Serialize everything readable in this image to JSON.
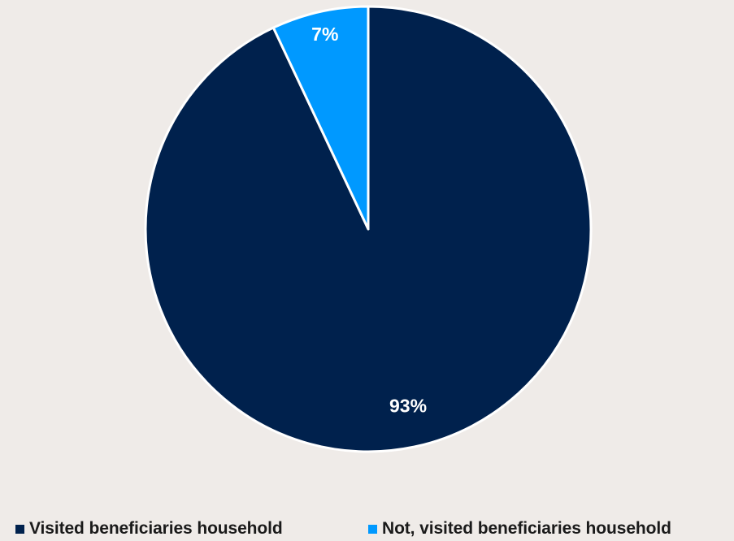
{
  "chart_data": {
    "type": "pie",
    "title": "",
    "categories": [
      "Visited beneficiaries household",
      "Not, visited beneficiaries household"
    ],
    "values": [
      93,
      7
    ],
    "data_labels": [
      "93%",
      "7%"
    ],
    "colors": [
      "#00214d",
      "#0099ff"
    ],
    "start": "12 o'clock",
    "direction": "clockwise",
    "legend_position": "bottom"
  }
}
